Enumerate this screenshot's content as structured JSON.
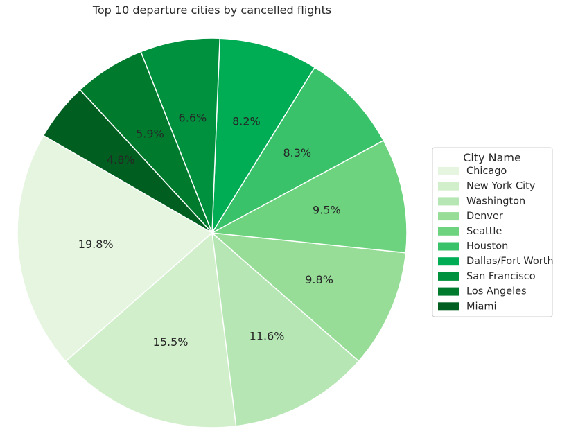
{
  "chart_data": {
    "type": "pie",
    "title": "Top 10 departure cities by cancelled flights",
    "legend": {
      "title": "City Name",
      "placement": "center-right"
    },
    "slices": [
      {
        "label": "Chicago",
        "value": 19.8,
        "pct_label": "19.8%",
        "color": "#e5f5e0"
      },
      {
        "label": "New York City",
        "value": 15.5,
        "pct_label": "15.5%",
        "color": "#d2efcb"
      },
      {
        "label": "Washington",
        "value": 11.6,
        "pct_label": "11.6%",
        "color": "#b7e6b5"
      },
      {
        "label": "Denver",
        "value": 9.8,
        "pct_label": "9.8%",
        "color": "#97dd98"
      },
      {
        "label": "Seattle",
        "value": 9.5,
        "pct_label": "9.5%",
        "color": "#6dd37f"
      },
      {
        "label": "Houston",
        "value": 8.3,
        "pct_label": "8.3%",
        "color": "#3ac26a"
      },
      {
        "label": "Dallas/Fort Worth",
        "value": 8.2,
        "pct_label": "8.2%",
        "color": "#00ad54"
      },
      {
        "label": "San Francisco",
        "value": 6.6,
        "pct_label": "6.6%",
        "color": "#00913e"
      },
      {
        "label": "Los Angeles",
        "value": 5.9,
        "pct_label": "5.9%",
        "color": "#007b2e"
      },
      {
        "label": "Miami",
        "value": 4.8,
        "pct_label": "4.8%",
        "color": "#005f20"
      }
    ],
    "start_angle_deg": 150,
    "direction": "counterclockwise"
  }
}
